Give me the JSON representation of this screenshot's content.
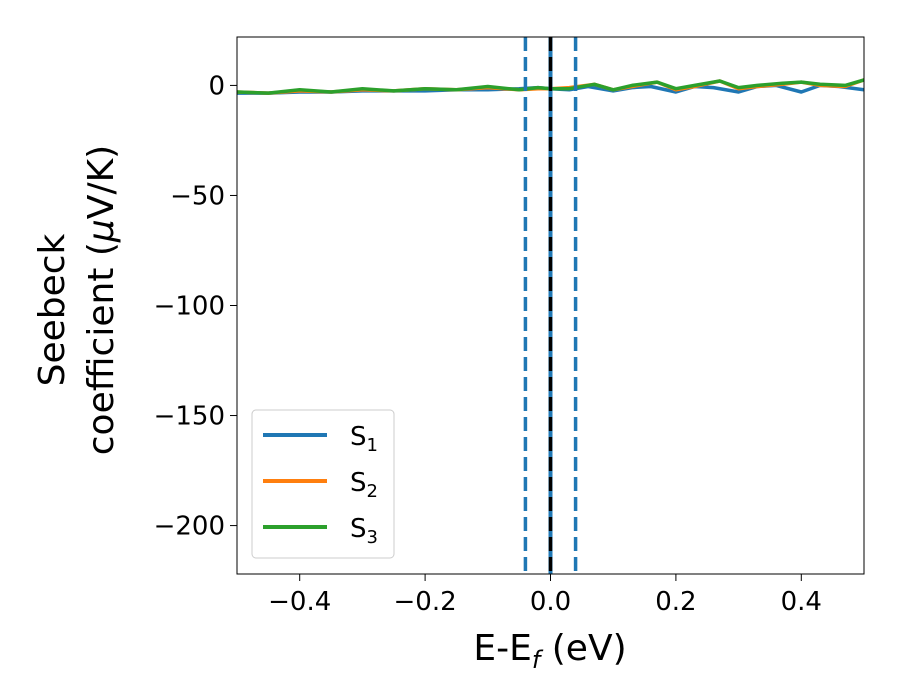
{
  "chart_data": {
    "type": "line",
    "xlabel": {
      "base": "E-E",
      "sub": "f",
      "suffix": " (eV)"
    },
    "ylabel": {
      "line1": "Seebeck",
      "line2": "coefficient  (",
      "mu": "μ",
      "line2_suffix": "V/K)"
    },
    "xlim": [
      -0.5,
      0.5
    ],
    "ylim": [
      -222,
      22
    ],
    "xticks": [
      -0.4,
      -0.2,
      0.0,
      0.2,
      0.4
    ],
    "xtick_labels": [
      "−0.4",
      "−0.2",
      "0.0",
      "0.2",
      "0.4"
    ],
    "yticks": [
      0,
      -50,
      -100,
      -150,
      -200
    ],
    "ytick_labels": [
      "0",
      "−50",
      "−100",
      "−150",
      "−200"
    ],
    "grid": false,
    "legend_position": "bottom-left",
    "vlines": [
      {
        "x": 0.0,
        "style": "solid",
        "color": "#1f77b4"
      },
      {
        "x": 0.0,
        "style": "dashed",
        "color": "#000000"
      },
      {
        "x": -0.04,
        "style": "dashed",
        "color": "#1f77b4"
      },
      {
        "x": 0.04,
        "style": "dashed",
        "color": "#1f77b4"
      }
    ],
    "series": [
      {
        "name": "S",
        "sub": "1",
        "color": "#1f77b4",
        "x": [
          -0.5,
          -0.45,
          -0.4,
          -0.35,
          -0.3,
          -0.25,
          -0.2,
          -0.15,
          -0.1,
          -0.05,
          -0.02,
          0.0,
          0.03,
          0.06,
          0.1,
          0.13,
          0.16,
          0.2,
          0.23,
          0.26,
          0.3,
          0.33,
          0.36,
          0.4,
          0.43,
          0.46,
          0.5
        ],
        "values": [
          -3.5,
          -3.5,
          -3.0,
          -3.0,
          -2.5,
          -2.5,
          -2.5,
          -2.0,
          -2.0,
          -1.5,
          -1.0,
          -1.5,
          -2.0,
          -0.5,
          -2.5,
          -1.0,
          -0.5,
          -3.0,
          -0.5,
          -1.0,
          -3.0,
          -0.5,
          0.0,
          -3.0,
          0.0,
          -0.5,
          -2.0
        ]
      },
      {
        "name": "S",
        "sub": "2",
        "color": "#ff7f0e",
        "x": [
          -0.5,
          -0.45,
          -0.4,
          -0.35,
          -0.3,
          -0.25,
          -0.2,
          -0.15,
          -0.1,
          -0.05,
          -0.02,
          0.0,
          0.03,
          0.07,
          0.1,
          0.13,
          0.17,
          0.2,
          0.23,
          0.27,
          0.3,
          0.33,
          0.37,
          0.4,
          0.43,
          0.47,
          0.5
        ],
        "values": [
          -3.0,
          -3.5,
          -2.5,
          -3.0,
          -2.0,
          -2.5,
          -1.5,
          -2.0,
          -1.0,
          -2.0,
          -1.5,
          -1.5,
          -1.0,
          0.5,
          -2.0,
          -0.5,
          1.5,
          -2.0,
          -0.5,
          2.0,
          -1.5,
          -0.5,
          0.5,
          1.5,
          0.0,
          -0.5,
          2.5
        ]
      },
      {
        "name": "S",
        "sub": "3",
        "color": "#2ca02c",
        "x": [
          -0.5,
          -0.45,
          -0.4,
          -0.35,
          -0.3,
          -0.25,
          -0.2,
          -0.15,
          -0.1,
          -0.05,
          -0.02,
          0.0,
          0.03,
          0.07,
          0.1,
          0.13,
          0.17,
          0.2,
          0.23,
          0.27,
          0.3,
          0.33,
          0.37,
          0.4,
          0.43,
          0.47,
          0.5
        ],
        "values": [
          -3.0,
          -3.5,
          -2.0,
          -3.0,
          -1.5,
          -2.5,
          -1.5,
          -2.0,
          -0.5,
          -2.0,
          -1.0,
          -1.5,
          -1.5,
          0.5,
          -2.0,
          0.0,
          1.5,
          -1.5,
          0.0,
          2.0,
          -1.0,
          0.0,
          1.0,
          1.5,
          0.5,
          0.0,
          2.5
        ]
      }
    ]
  }
}
